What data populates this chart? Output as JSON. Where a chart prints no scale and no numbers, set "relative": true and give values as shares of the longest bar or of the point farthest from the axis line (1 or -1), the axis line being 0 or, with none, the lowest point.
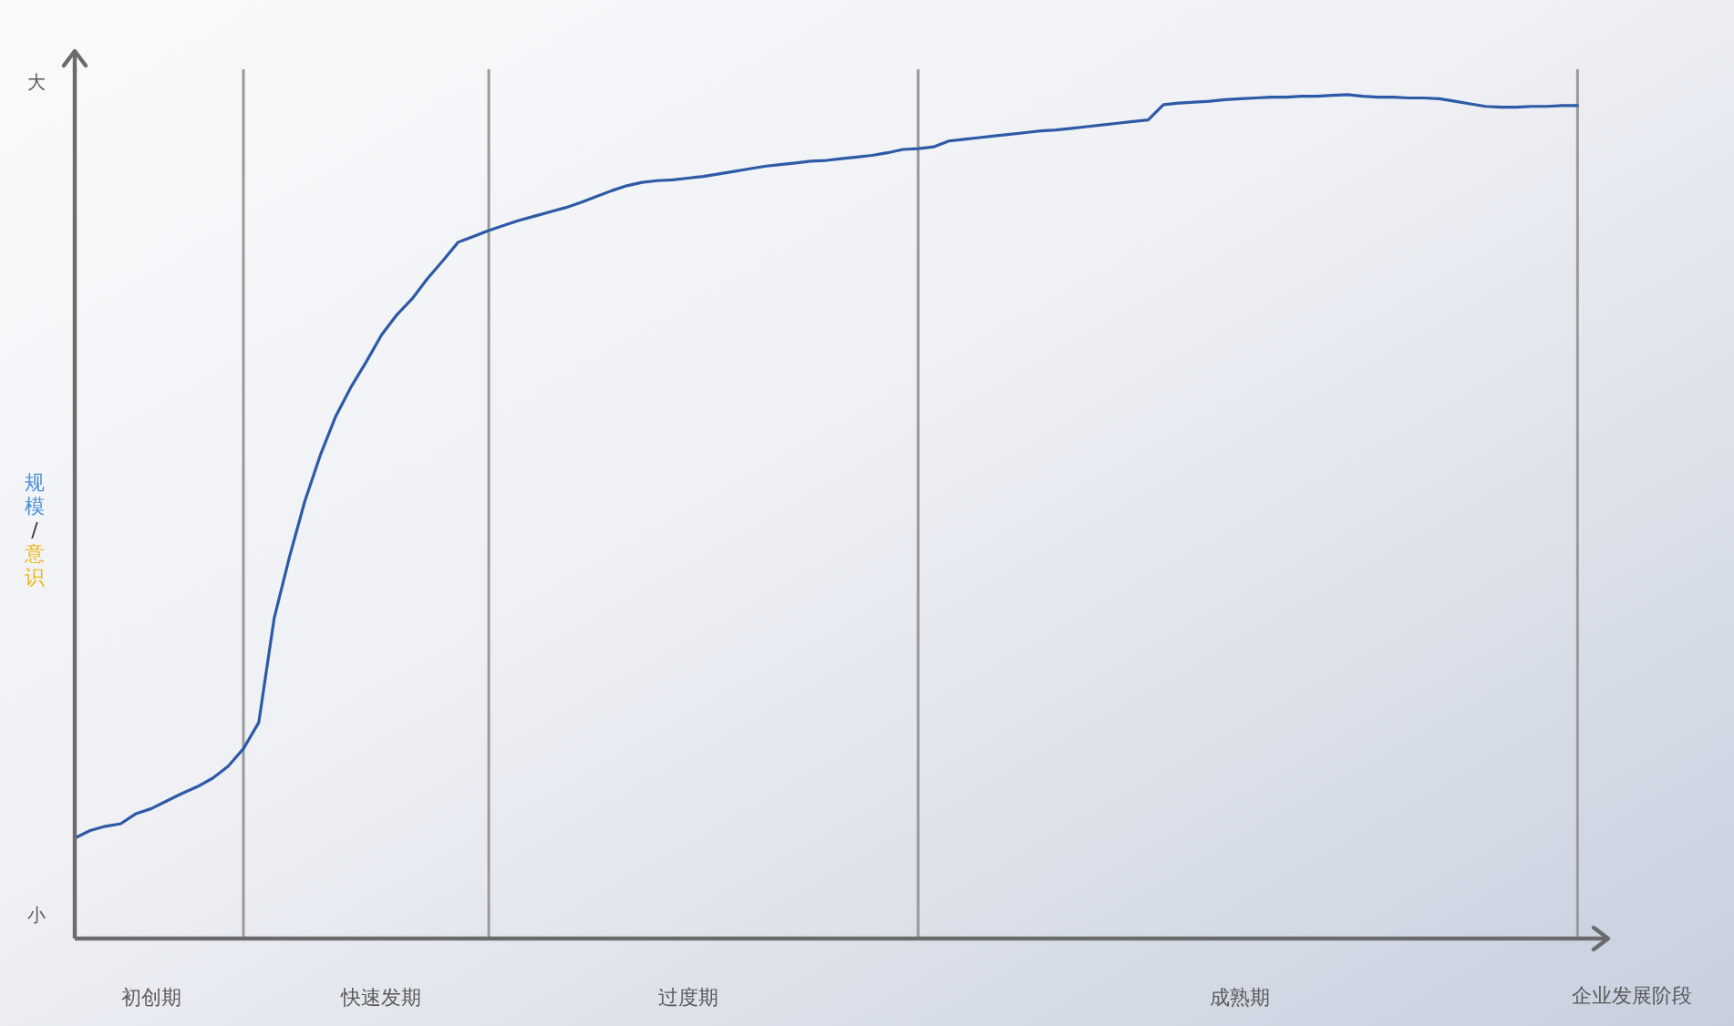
{
  "chart_data": {
    "type": "line",
    "relative": true,
    "xlabel": "企业发展阶段",
    "ylabel": "规模/意识",
    "annotations": [
      "大",
      "小"
    ],
    "categories": [
      null,
      null,
      null,
      null,
      null,
      "初创期",
      null,
      null,
      null,
      null,
      null,
      null,
      null,
      null,
      null,
      null,
      null,
      null,
      null,
      null,
      "快速发期",
      null,
      null,
      null,
      null,
      null,
      null,
      null,
      null,
      null,
      null,
      null,
      null,
      null,
      null,
      null,
      null,
      null,
      null,
      null,
      "过度期",
      null,
      null,
      null,
      null,
      null,
      null,
      null,
      null,
      null,
      null,
      null,
      null,
      null,
      null,
      null,
      null,
      null,
      null,
      null,
      null,
      null,
      null,
      null,
      null,
      null,
      null,
      null,
      null,
      null,
      null,
      null,
      null,
      null,
      null,
      null,
      "成熟期",
      null,
      null,
      null,
      null,
      null,
      null,
      null,
      null,
      null,
      null,
      null,
      null,
      null,
      null,
      null,
      null,
      null,
      null,
      null,
      null,
      null,
      null
    ],
    "values": [
      0.119,
      0.128,
      0.133,
      0.136,
      0.148,
      0.154,
      0.163,
      0.172,
      0.18,
      0.19,
      0.204,
      0.225,
      0.256,
      0.379,
      0.452,
      0.518,
      0.572,
      0.618,
      0.653,
      0.683,
      0.715,
      0.739,
      0.758,
      0.782,
      0.803,
      0.825,
      0.832,
      0.839,
      0.845,
      0.851,
      0.856,
      0.861,
      0.866,
      0.872,
      0.879,
      0.886,
      0.892,
      0.896,
      0.898,
      0.899,
      0.901,
      0.903,
      0.906,
      0.909,
      0.912,
      0.915,
      0.917,
      0.919,
      0.921,
      0.922,
      0.924,
      0.926,
      0.928,
      0.931,
      0.935,
      0.936,
      0.938,
      0.945,
      0.947,
      0.949,
      0.951,
      0.953,
      0.955,
      0.957,
      0.958,
      0.96,
      0.962,
      0.964,
      0.966,
      0.968,
      0.97,
      0.988,
      0.99,
      0.991,
      0.992,
      0.994,
      0.995,
      0.996,
      0.997,
      0.997,
      0.998,
      0.998,
      0.999,
      1.0,
      0.998,
      0.997,
      0.997,
      0.996,
      0.996,
      0.995,
      0.992,
      0.989,
      0.986,
      0.985,
      0.985,
      0.986,
      0.986,
      0.987,
      0.987
    ],
    "color": "#2d5aa6"
  }
}
